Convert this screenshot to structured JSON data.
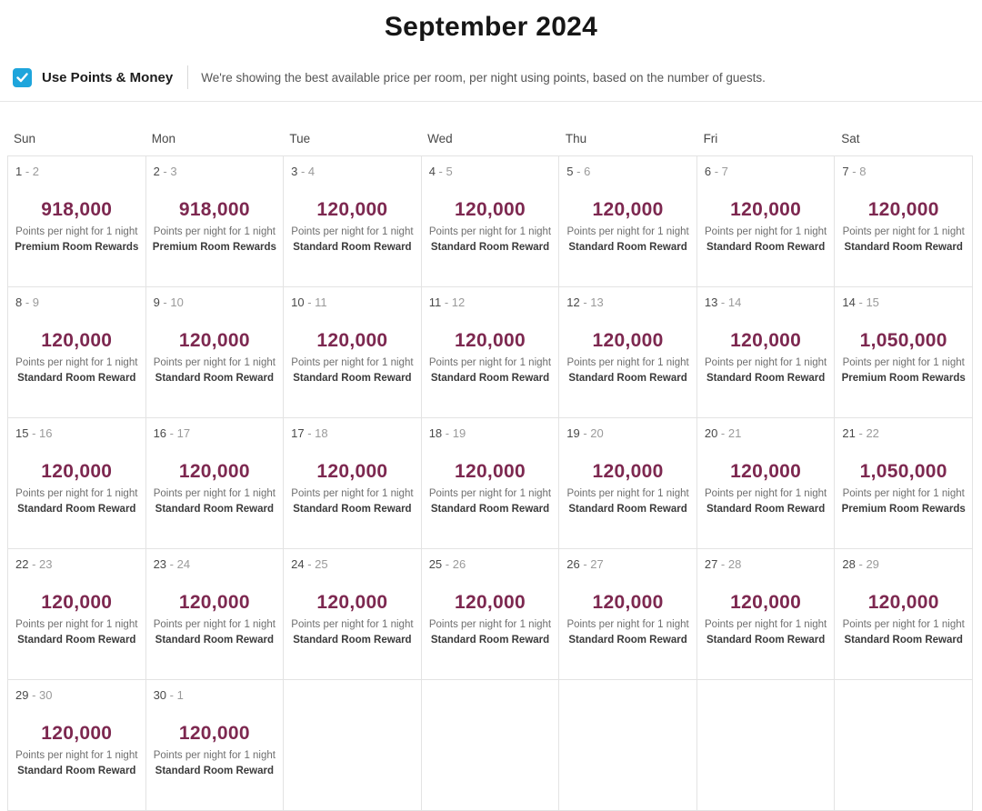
{
  "page": {
    "title": "September 2024"
  },
  "filter": {
    "label": "Use Points & Money",
    "checked": true,
    "description": "We're showing the best available price per room, per night using points, based on the number of guests."
  },
  "colors": {
    "checkbox_blue": "#1ea5dc",
    "points_maroon": "#7d2850"
  },
  "icons": {
    "checkbox_checkmark": "check-icon"
  },
  "calendar": {
    "day_headers": [
      "Sun",
      "Mon",
      "Tue",
      "Wed",
      "Thu",
      "Fri",
      "Sat"
    ],
    "unit_label": "Points per night for 1 night",
    "cells": [
      {
        "date_start": "1",
        "date_end": "2",
        "points": "918,000",
        "unit": "Points per night for 1 night",
        "room": "Premium Room Rewards"
      },
      {
        "date_start": "2",
        "date_end": "3",
        "points": "918,000",
        "unit": "Points per night for 1 night",
        "room": "Premium Room Rewards"
      },
      {
        "date_start": "3",
        "date_end": "4",
        "points": "120,000",
        "unit": "Points per night for 1 night",
        "room": "Standard Room Reward"
      },
      {
        "date_start": "4",
        "date_end": "5",
        "points": "120,000",
        "unit": "Points per night for 1 night",
        "room": "Standard Room Reward"
      },
      {
        "date_start": "5",
        "date_end": "6",
        "points": "120,000",
        "unit": "Points per night for 1 night",
        "room": "Standard Room Reward"
      },
      {
        "date_start": "6",
        "date_end": "7",
        "points": "120,000",
        "unit": "Points per night for 1 night",
        "room": "Standard Room Reward"
      },
      {
        "date_start": "7",
        "date_end": "8",
        "points": "120,000",
        "unit": "Points per night for 1 night",
        "room": "Standard Room Reward"
      },
      {
        "date_start": "8",
        "date_end": "9",
        "points": "120,000",
        "unit": "Points per night for 1 night",
        "room": "Standard Room Reward"
      },
      {
        "date_start": "9",
        "date_end": "10",
        "points": "120,000",
        "unit": "Points per night for 1 night",
        "room": "Standard Room Reward"
      },
      {
        "date_start": "10",
        "date_end": "11",
        "points": "120,000",
        "unit": "Points per night for 1 night",
        "room": "Standard Room Reward"
      },
      {
        "date_start": "11",
        "date_end": "12",
        "points": "120,000",
        "unit": "Points per night for 1 night",
        "room": "Standard Room Reward"
      },
      {
        "date_start": "12",
        "date_end": "13",
        "points": "120,000",
        "unit": "Points per night for 1 night",
        "room": "Standard Room Reward"
      },
      {
        "date_start": "13",
        "date_end": "14",
        "points": "120,000",
        "unit": "Points per night for 1 night",
        "room": "Standard Room Reward"
      },
      {
        "date_start": "14",
        "date_end": "15",
        "points": "1,050,000",
        "unit": "Points per night for 1 night",
        "room": "Premium Room Rewards"
      },
      {
        "date_start": "15",
        "date_end": "16",
        "points": "120,000",
        "unit": "Points per night for 1 night",
        "room": "Standard Room Reward"
      },
      {
        "date_start": "16",
        "date_end": "17",
        "points": "120,000",
        "unit": "Points per night for 1 night",
        "room": "Standard Room Reward"
      },
      {
        "date_start": "17",
        "date_end": "18",
        "points": "120,000",
        "unit": "Points per night for 1 night",
        "room": "Standard Room Reward"
      },
      {
        "date_start": "18",
        "date_end": "19",
        "points": "120,000",
        "unit": "Points per night for 1 night",
        "room": "Standard Room Reward"
      },
      {
        "date_start": "19",
        "date_end": "20",
        "points": "120,000",
        "unit": "Points per night for 1 night",
        "room": "Standard Room Reward"
      },
      {
        "date_start": "20",
        "date_end": "21",
        "points": "120,000",
        "unit": "Points per night for 1 night",
        "room": "Standard Room Reward"
      },
      {
        "date_start": "21",
        "date_end": "22",
        "points": "1,050,000",
        "unit": "Points per night for 1 night",
        "room": "Premium Room Rewards"
      },
      {
        "date_start": "22",
        "date_end": "23",
        "points": "120,000",
        "unit": "Points per night for 1 night",
        "room": "Standard Room Reward"
      },
      {
        "date_start": "23",
        "date_end": "24",
        "points": "120,000",
        "unit": "Points per night for 1 night",
        "room": "Standard Room Reward"
      },
      {
        "date_start": "24",
        "date_end": "25",
        "points": "120,000",
        "unit": "Points per night for 1 night",
        "room": "Standard Room Reward"
      },
      {
        "date_start": "25",
        "date_end": "26",
        "points": "120,000",
        "unit": "Points per night for 1 night",
        "room": "Standard Room Reward"
      },
      {
        "date_start": "26",
        "date_end": "27",
        "points": "120,000",
        "unit": "Points per night for 1 night",
        "room": "Standard Room Reward"
      },
      {
        "date_start": "27",
        "date_end": "28",
        "points": "120,000",
        "unit": "Points per night for 1 night",
        "room": "Standard Room Reward"
      },
      {
        "date_start": "28",
        "date_end": "29",
        "points": "120,000",
        "unit": "Points per night for 1 night",
        "room": "Standard Room Reward"
      },
      {
        "date_start": "29",
        "date_end": "30",
        "points": "120,000",
        "unit": "Points per night for 1 night",
        "room": "Standard Room Reward"
      },
      {
        "date_start": "30",
        "date_end": "1",
        "points": "120,000",
        "unit": "Points per night for 1 night",
        "room": "Standard Room Reward"
      },
      {
        "empty": true
      },
      {
        "empty": true
      },
      {
        "empty": true
      },
      {
        "empty": true
      },
      {
        "empty": true
      }
    ]
  }
}
